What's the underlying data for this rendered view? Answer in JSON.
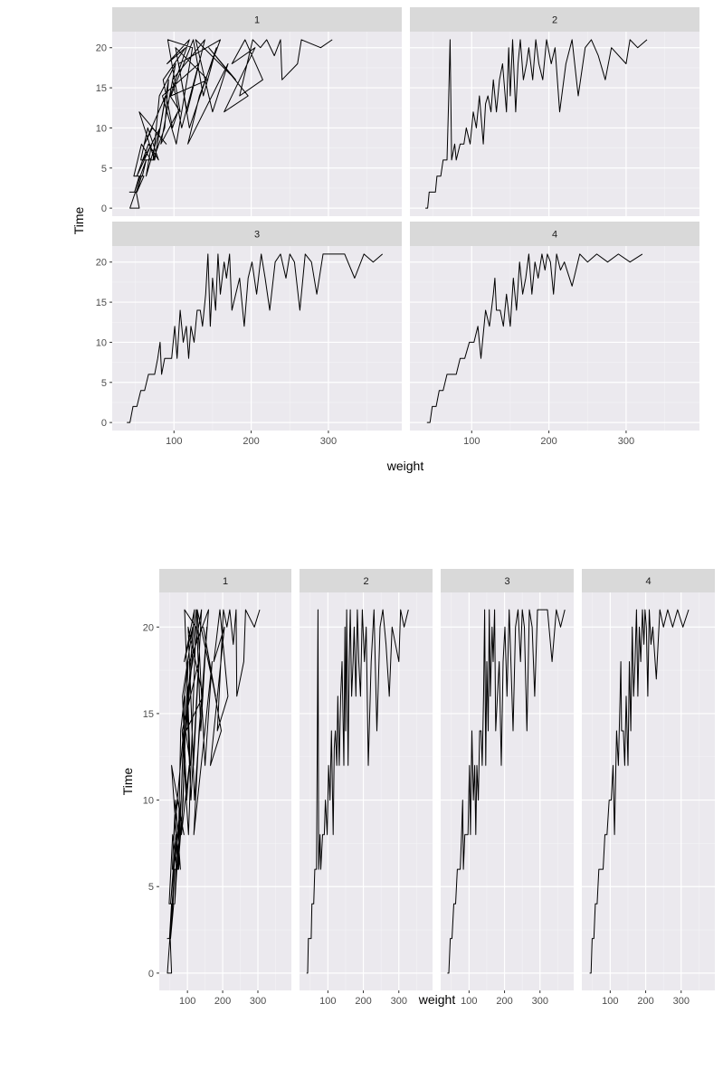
{
  "colors": {
    "panel_bg": "#ebe9ee",
    "strip_bg": "#d9d9d9",
    "grid_major": "#ffffff",
    "grid_minor": "#f4f3f6",
    "line": "#000000",
    "tick_text": "#4d4d4d"
  },
  "chart_data": [
    {
      "type": "line",
      "layout": "facet_wrap 2x2",
      "xlabel": "weight",
      "ylabel": "Time",
      "xlim": [
        20,
        395
      ],
      "ylim": [
        -1,
        22
      ],
      "x_ticks": [
        100,
        200,
        300
      ],
      "y_ticks": [
        0,
        5,
        10,
        15,
        20
      ],
      "grid": true,
      "facets": [
        {
          "label": "1",
          "points": [
            [
              42,
              2
            ],
            [
              50,
              2
            ],
            [
              43,
              0
            ],
            [
              50,
              0
            ],
            [
              55,
              0
            ],
            [
              51,
              2
            ],
            [
              58,
              4
            ],
            [
              52,
              2
            ],
            [
              61,
              4
            ],
            [
              55,
              4
            ],
            [
              49,
              2
            ],
            [
              64,
              6
            ],
            [
              59,
              4
            ],
            [
              48,
              4
            ],
            [
              58,
              8
            ],
            [
              70,
              6
            ],
            [
              57,
              6
            ],
            [
              66,
              10
            ],
            [
              80,
              6
            ],
            [
              67,
              8
            ],
            [
              52,
              4
            ],
            [
              71,
              8
            ],
            [
              64,
              4
            ],
            [
              82,
              10
            ],
            [
              60,
              6
            ],
            [
              75,
              6
            ],
            [
              55,
              12
            ],
            [
              90,
              8
            ],
            [
              72,
              10
            ],
            [
              62,
              8
            ],
            [
              89,
              14
            ],
            [
              75,
              6
            ],
            [
              93,
              16
            ],
            [
              88,
              10
            ],
            [
              73,
              6
            ],
            [
              81,
              14
            ],
            [
              102,
              18
            ],
            [
              83,
              8
            ],
            [
              105,
              12
            ],
            [
              98,
              10
            ],
            [
              86,
              16
            ],
            [
              115,
              20
            ],
            [
              91,
              18
            ],
            [
              120,
              21
            ],
            [
              95,
              14
            ],
            [
              108,
              12
            ],
            [
              92,
              21
            ],
            [
              124,
              20
            ],
            [
              103,
              8
            ],
            [
              85,
              14
            ],
            [
              132,
              18
            ],
            [
              110,
              10
            ],
            [
              98,
              16
            ],
            [
              140,
              21
            ],
            [
              117,
              12
            ],
            [
              102,
              20
            ],
            [
              144,
              16
            ],
            [
              96,
              14
            ],
            [
              125,
              21
            ],
            [
              138,
              14
            ],
            [
              155,
              20
            ],
            [
              120,
              10
            ],
            [
              106,
              18
            ],
            [
              160,
              21
            ],
            [
              133,
              14
            ],
            [
              118,
              8
            ],
            [
              170,
              18
            ],
            [
              150,
              12
            ],
            [
              128,
              21
            ],
            [
              180,
              16
            ],
            [
              145,
              20
            ],
            [
              196,
              14
            ],
            [
              165,
              12
            ],
            [
              205,
              20
            ],
            [
              175,
              18
            ],
            [
              192,
              21
            ],
            [
              215,
              16
            ],
            [
              185,
              14
            ],
            [
              202,
              21
            ],
            [
              212,
              20
            ],
            [
              220,
              21
            ],
            [
              230,
              19
            ],
            [
              238,
              21
            ],
            [
              240,
              16
            ],
            [
              260,
              18
            ],
            [
              265,
              21
            ],
            [
              290,
              20
            ],
            [
              305,
              21
            ]
          ]
        },
        {
          "label": "2",
          "points": [
            [
              40,
              0
            ],
            [
              43,
              0
            ],
            [
              45,
              2
            ],
            [
              49,
              2
            ],
            [
              53,
              2
            ],
            [
              55,
              4
            ],
            [
              60,
              4
            ],
            [
              63,
              6
            ],
            [
              68,
              6
            ],
            [
              70,
              13
            ],
            [
              72,
              21
            ],
            [
              74,
              6
            ],
            [
              78,
              8
            ],
            [
              80,
              6
            ],
            [
              85,
              8
            ],
            [
              90,
              8
            ],
            [
              93,
              10
            ],
            [
              98,
              8
            ],
            [
              102,
              12
            ],
            [
              106,
              10
            ],
            [
              110,
              14
            ],
            [
              115,
              8
            ],
            [
              118,
              13
            ],
            [
              121,
              14
            ],
            [
              125,
              12
            ],
            [
              128,
              16
            ],
            [
              132,
              12
            ],
            [
              136,
              16
            ],
            [
              140,
              18
            ],
            [
              145,
              12
            ],
            [
              148,
              20
            ],
            [
              150,
              14
            ],
            [
              153,
              21
            ],
            [
              157,
              12
            ],
            [
              160,
              18
            ],
            [
              163,
              21
            ],
            [
              167,
              16
            ],
            [
              171,
              18
            ],
            [
              174,
              20
            ],
            [
              179,
              16
            ],
            [
              183,
              21
            ],
            [
              187,
              18
            ],
            [
              192,
              16
            ],
            [
              197,
              21
            ],
            [
              203,
              18
            ],
            [
              208,
              20
            ],
            [
              214,
              12
            ],
            [
              222,
              18
            ],
            [
              230,
              21
            ],
            [
              238,
              14
            ],
            [
              247,
              20
            ],
            [
              255,
              21
            ],
            [
              264,
              19
            ],
            [
              273,
              16
            ],
            [
              281,
              20
            ],
            [
              300,
              18
            ],
            [
              305,
              21
            ],
            [
              315,
              20
            ],
            [
              327,
              21
            ]
          ]
        },
        {
          "label": "3",
          "points": [
            [
              39,
              0
            ],
            [
              43,
              0
            ],
            [
              47,
              2
            ],
            [
              52,
              2
            ],
            [
              57,
              4
            ],
            [
              62,
              4
            ],
            [
              67,
              6
            ],
            [
              71,
              6
            ],
            [
              75,
              6
            ],
            [
              79,
              8
            ],
            [
              82,
              10
            ],
            [
              84,
              6
            ],
            [
              88,
              8
            ],
            [
              92,
              8
            ],
            [
              97,
              8
            ],
            [
              101,
              12
            ],
            [
              104,
              8
            ],
            [
              108,
              14
            ],
            [
              112,
              10
            ],
            [
              116,
              12
            ],
            [
              119,
              8
            ],
            [
              122,
              12
            ],
            [
              126,
              10
            ],
            [
              130,
              14
            ],
            [
              134,
              14
            ],
            [
              137,
              12
            ],
            [
              141,
              16
            ],
            [
              144,
              21
            ],
            [
              147,
              12
            ],
            [
              150,
              18
            ],
            [
              154,
              14
            ],
            [
              157,
              21
            ],
            [
              160,
              16
            ],
            [
              165,
              20
            ],
            [
              168,
              18
            ],
            [
              172,
              21
            ],
            [
              175,
              14
            ],
            [
              180,
              16
            ],
            [
              185,
              18
            ],
            [
              191,
              12
            ],
            [
              196,
              18
            ],
            [
              201,
              20
            ],
            [
              207,
              16
            ],
            [
              213,
              21
            ],
            [
              218,
              18
            ],
            [
              224,
              14
            ],
            [
              231,
              20
            ],
            [
              238,
              21
            ],
            [
              245,
              18
            ],
            [
              250,
              21
            ],
            [
              256,
              20
            ],
            [
              263,
              14
            ],
            [
              270,
              21
            ],
            [
              278,
              20
            ],
            [
              285,
              16
            ],
            [
              293,
              21
            ],
            [
              310,
              21
            ],
            [
              321,
              21
            ],
            [
              334,
              18
            ],
            [
              346,
              21
            ],
            [
              358,
              20
            ],
            [
              370,
              21
            ]
          ]
        },
        {
          "label": "4",
          "points": [
            [
              42,
              0
            ],
            [
              46,
              0
            ],
            [
              49,
              2
            ],
            [
              54,
              2
            ],
            [
              58,
              4
            ],
            [
              63,
              4
            ],
            [
              68,
              6
            ],
            [
              73,
              6
            ],
            [
              80,
              6
            ],
            [
              85,
              8
            ],
            [
              91,
              8
            ],
            [
              97,
              10
            ],
            [
              103,
              10
            ],
            [
              108,
              12
            ],
            [
              112,
              8
            ],
            [
              118,
              14
            ],
            [
              123,
              12
            ],
            [
              128,
              16
            ],
            [
              130,
              18
            ],
            [
              132,
              14
            ],
            [
              137,
              14
            ],
            [
              141,
              12
            ],
            [
              145,
              16
            ],
            [
              150,
              12
            ],
            [
              154,
              18
            ],
            [
              158,
              14
            ],
            [
              162,
              20
            ],
            [
              166,
              16
            ],
            [
              170,
              18
            ],
            [
              174,
              21
            ],
            [
              178,
              16
            ],
            [
              182,
              20
            ],
            [
              186,
              18
            ],
            [
              191,
              21
            ],
            [
              195,
              19
            ],
            [
              198,
              21
            ],
            [
              202,
              20
            ],
            [
              206,
              16
            ],
            [
              210,
              21
            ],
            [
              215,
              19
            ],
            [
              220,
              20
            ],
            [
              230,
              17
            ],
            [
              240,
              21
            ],
            [
              250,
              20
            ],
            [
              262,
              21
            ],
            [
              276,
              20
            ],
            [
              290,
              21
            ],
            [
              305,
              20
            ],
            [
              321,
              21
            ]
          ]
        }
      ]
    },
    {
      "type": "line",
      "layout": "facet_wrap 1x4",
      "xlabel": "weight",
      "ylabel": "Time",
      "xlim": [
        20,
        395
      ],
      "ylim": [
        -1,
        22
      ],
      "x_ticks": [
        100,
        200,
        300
      ],
      "y_ticks": [
        0,
        5,
        10,
        15,
        20
      ],
      "grid": true,
      "facets": [
        {
          "label": "1",
          "same_as": 0
        },
        {
          "label": "2",
          "same_as": 1
        },
        {
          "label": "3",
          "same_as": 2
        },
        {
          "label": "4",
          "same_as": 3
        }
      ]
    }
  ]
}
